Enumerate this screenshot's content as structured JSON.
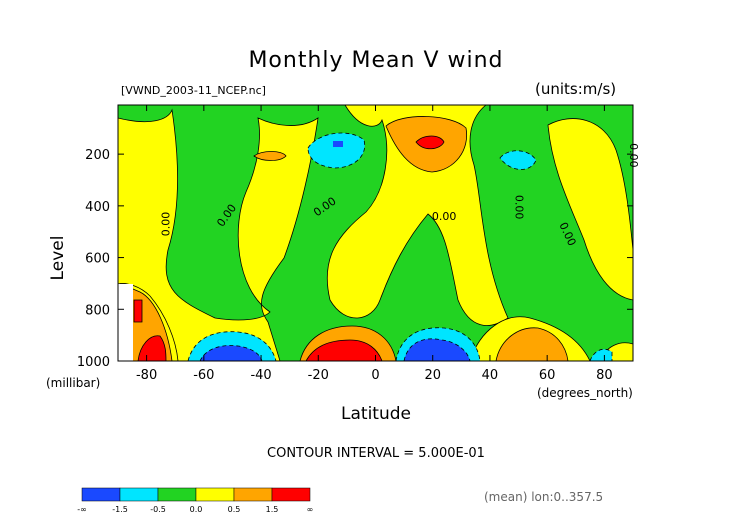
{
  "chart_data": {
    "type": "heatmap",
    "title": "Monthly Mean V wind",
    "source_label": "[VWND_2003-11_NCEP.nc]",
    "units_label": "(units:m/s)",
    "xlabel": "Latitude",
    "x_unit": "(degrees_north)",
    "ylabel": "Level",
    "y_unit": "(millibar)",
    "xlim": [
      -90,
      90
    ],
    "ylim": [
      1000,
      10
    ],
    "x_ticks": [
      -80,
      -60,
      -40,
      -20,
      0,
      20,
      40,
      60,
      80
    ],
    "y_ticks": [
      200,
      400,
      600,
      800,
      1000
    ],
    "contour_interval_text": "CONTOUR INTERVAL = 5.000E-01",
    "mean_text": "(mean) lon:0..357.5",
    "contour_labels": [
      "0.00",
      "0.00",
      "0.00",
      "0.00",
      "0.00",
      "0.00",
      "0.00"
    ],
    "colorbar": {
      "colors": [
        "#1a49ff",
        "#00e5ff",
        "#22d322",
        "#ffff00",
        "#ffa500",
        "#ff0000"
      ],
      "tick_labels": [
        "-∞",
        "-1.5",
        "-0.5",
        "0.0",
        "0.5",
        "1.5",
        "∞"
      ]
    }
  }
}
